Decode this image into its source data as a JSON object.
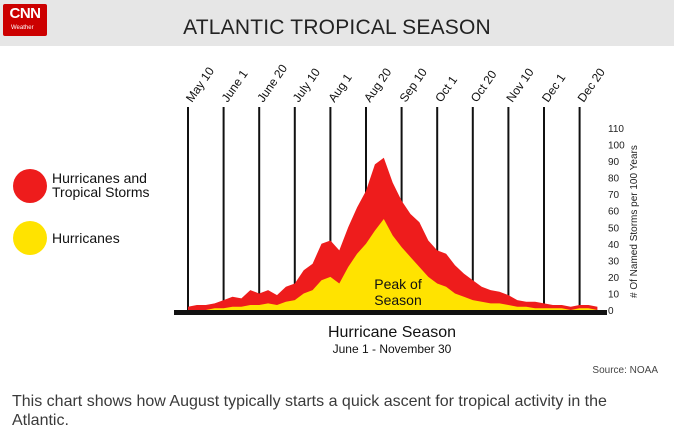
{
  "header": {
    "logo": "CNN",
    "logo_sub": "Weather",
    "title": "ATLANTIC TROPICAL SEASON"
  },
  "chart_data": {
    "type": "area",
    "title": "ATLANTIC TROPICAL SEASON",
    "xlabel": "Hurricane Season",
    "xsublabel": "June 1 - November 30",
    "ylabel": "# Of Named Storms per 100 Years",
    "ylim": [
      0,
      110
    ],
    "yticks": [
      0,
      10,
      20,
      30,
      40,
      50,
      60,
      70,
      80,
      90,
      100,
      110
    ],
    "date_markers": [
      "May 10",
      "June 1",
      "June 20",
      "July 10",
      "Aug 1",
      "Aug 20",
      "Sep 10",
      "Oct 1",
      "Oct 20",
      "Nov 10",
      "Dec 1",
      "Dec 20"
    ],
    "x_index": [
      0,
      0.25,
      0.5,
      0.75,
      1,
      1.25,
      1.5,
      1.75,
      2,
      2.25,
      2.5,
      2.75,
      3,
      3.25,
      3.5,
      3.75,
      4,
      4.25,
      4.5,
      4.75,
      5,
      5.25,
      5.5,
      5.75,
      6,
      6.25,
      6.5,
      6.75,
      7,
      7.25,
      7.5,
      7.75,
      8,
      8.25,
      8.5,
      8.75,
      9,
      9.25,
      9.5,
      9.75,
      10,
      10.25,
      10.5,
      10.75,
      11,
      11.25,
      11.5
    ],
    "series": [
      {
        "name": "Hurricanes and Tropical Storms",
        "color": "#ee1c1c",
        "values": [
          2,
          3,
          3,
          4,
          6,
          8,
          7,
          12,
          10,
          12,
          9,
          14,
          16,
          24,
          28,
          40,
          42,
          36,
          50,
          62,
          72,
          88,
          92,
          77,
          66,
          58,
          53,
          42,
          36,
          34,
          27,
          22,
          18,
          14,
          12,
          11,
          9,
          6,
          5,
          5,
          4,
          3,
          3,
          2,
          3,
          3,
          2
        ]
      },
      {
        "name": "Hurricanes",
        "color": "#ffe300",
        "values": [
          0,
          0,
          0,
          1,
          1,
          2,
          2,
          3,
          3,
          4,
          3,
          5,
          6,
          10,
          12,
          18,
          20,
          16,
          26,
          34,
          40,
          48,
          55,
          45,
          38,
          32,
          26,
          20,
          16,
          14,
          10,
          8,
          6,
          5,
          4,
          4,
          3,
          2,
          2,
          1,
          1,
          1,
          1,
          0,
          1,
          1,
          0
        ]
      }
    ],
    "annotation": "Peak of Season",
    "legend_position": "left",
    "source": "Source: NOAA"
  },
  "caption": "This chart shows how August typically starts a quick ascent for tropical activity in the Atlantic."
}
